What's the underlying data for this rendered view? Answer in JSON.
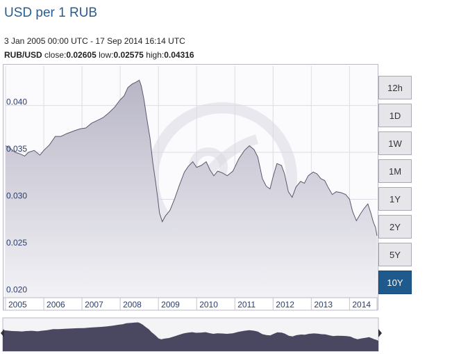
{
  "header": {
    "title": "USD per 1 RUB",
    "date_range": "3 Jan 2005 00:00 UTC - 17 Sep 2014 16:14 UTC",
    "pair": "RUB/USD",
    "close_label": "close:",
    "close_value": "0.02605",
    "low_label": "low:",
    "low_value": "0.02575",
    "high_label": "high:",
    "high_value": "0.04316"
  },
  "range_buttons": [
    {
      "label": "12h",
      "active": false
    },
    {
      "label": "1D",
      "active": false
    },
    {
      "label": "1W",
      "active": false
    },
    {
      "label": "1M",
      "active": false
    },
    {
      "label": "1Y",
      "active": false
    },
    {
      "label": "2Y",
      "active": false
    },
    {
      "label": "5Y",
      "active": false
    },
    {
      "label": "10Y",
      "active": true
    }
  ],
  "colors": {
    "area_fill_top": "#b8b6c6",
    "area_fill_bottom": "#f2f2f6",
    "line": "#5a586c",
    "active_button": "#1f5a8d",
    "watermark": "#d9d9e2",
    "navigator_fill": "#4a4860"
  },
  "chart_data": {
    "type": "area",
    "title": "USD per 1 RUB",
    "series": [
      {
        "name": "RUB/USD",
        "points": [
          [
            2005.0,
            0.0357
          ],
          [
            2005.1,
            0.0355
          ],
          [
            2005.25,
            0.035
          ],
          [
            2005.4,
            0.0348
          ],
          [
            2005.5,
            0.0346
          ],
          [
            2005.6,
            0.035
          ],
          [
            2005.75,
            0.0352
          ],
          [
            2005.9,
            0.0347
          ],
          [
            2006.0,
            0.0352
          ],
          [
            2006.15,
            0.0358
          ],
          [
            2006.3,
            0.0367
          ],
          [
            2006.45,
            0.0367
          ],
          [
            2006.6,
            0.037
          ],
          [
            2006.8,
            0.0373
          ],
          [
            2006.95,
            0.0375
          ],
          [
            2007.1,
            0.0376
          ],
          [
            2007.25,
            0.0381
          ],
          [
            2007.4,
            0.0384
          ],
          [
            2007.55,
            0.0387
          ],
          [
            2007.7,
            0.0392
          ],
          [
            2007.85,
            0.0398
          ],
          [
            2008.0,
            0.0406
          ],
          [
            2008.1,
            0.041
          ],
          [
            2008.2,
            0.0419
          ],
          [
            2008.32,
            0.0423
          ],
          [
            2008.42,
            0.0425
          ],
          [
            2008.5,
            0.0427
          ],
          [
            2008.55,
            0.0421
          ],
          [
            2008.62,
            0.0407
          ],
          [
            2008.7,
            0.0385
          ],
          [
            2008.78,
            0.0365
          ],
          [
            2008.85,
            0.034
          ],
          [
            2008.92,
            0.032
          ],
          [
            2008.97,
            0.0305
          ],
          [
            2009.03,
            0.0285
          ],
          [
            2009.1,
            0.0276
          ],
          [
            2009.18,
            0.0282
          ],
          [
            2009.3,
            0.0288
          ],
          [
            2009.42,
            0.03
          ],
          [
            2009.55,
            0.0315
          ],
          [
            2009.68,
            0.0329
          ],
          [
            2009.78,
            0.0335
          ],
          [
            2009.9,
            0.034
          ],
          [
            2010.0,
            0.0334
          ],
          [
            2010.12,
            0.0336
          ],
          [
            2010.25,
            0.034
          ],
          [
            2010.35,
            0.0331
          ],
          [
            2010.45,
            0.0325
          ],
          [
            2010.55,
            0.033
          ],
          [
            2010.68,
            0.0328
          ],
          [
            2010.8,
            0.0325
          ],
          [
            2010.95,
            0.033
          ],
          [
            2011.1,
            0.0343
          ],
          [
            2011.25,
            0.0352
          ],
          [
            2011.38,
            0.0357
          ],
          [
            2011.5,
            0.0353
          ],
          [
            2011.6,
            0.0345
          ],
          [
            2011.72,
            0.0322
          ],
          [
            2011.82,
            0.0314
          ],
          [
            2011.92,
            0.0311
          ],
          [
            2012.0,
            0.0324
          ],
          [
            2012.1,
            0.0338
          ],
          [
            2012.22,
            0.0336
          ],
          [
            2012.3,
            0.0327
          ],
          [
            2012.4,
            0.0308
          ],
          [
            2012.5,
            0.0302
          ],
          [
            2012.6,
            0.0313
          ],
          [
            2012.72,
            0.0319
          ],
          [
            2012.82,
            0.0317
          ],
          [
            2012.92,
            0.0325
          ],
          [
            2013.05,
            0.0329
          ],
          [
            2013.15,
            0.0327
          ],
          [
            2013.25,
            0.0322
          ],
          [
            2013.35,
            0.032
          ],
          [
            2013.45,
            0.0312
          ],
          [
            2013.55,
            0.0305
          ],
          [
            2013.65,
            0.0308
          ],
          [
            2013.78,
            0.0307
          ],
          [
            2013.9,
            0.0305
          ],
          [
            2014.0,
            0.03
          ],
          [
            2014.08,
            0.0287
          ],
          [
            2014.18,
            0.0277
          ],
          [
            2014.28,
            0.0284
          ],
          [
            2014.38,
            0.029
          ],
          [
            2014.48,
            0.0295
          ],
          [
            2014.56,
            0.0285
          ],
          [
            2014.62,
            0.0276
          ],
          [
            2014.68,
            0.027
          ],
          [
            2014.72,
            0.0261
          ]
        ]
      }
    ],
    "y_ticks": [
      "0.020",
      "0.025",
      "0.030",
      "0.035",
      "0.040"
    ],
    "x_ticks": [
      "2005",
      "2006",
      "2007",
      "2008",
      "2009",
      "2010",
      "2011",
      "2012",
      "2013",
      "2014"
    ],
    "xlim": [
      2005.0,
      2014.72
    ],
    "ylim": [
      0.0195,
      0.0442
    ],
    "grid": true,
    "legend": "none"
  }
}
